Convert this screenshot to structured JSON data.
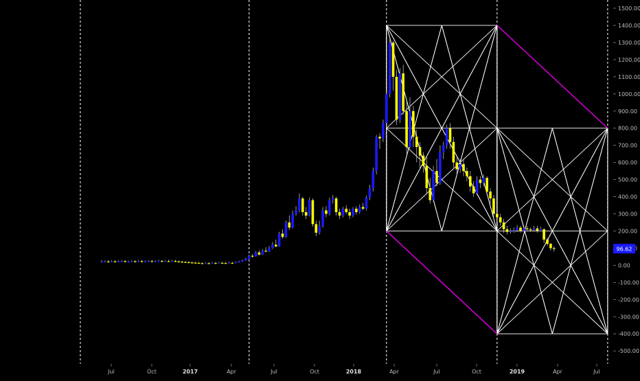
{
  "colors": {
    "background": "#000000",
    "bull_candle": "#1a1aff",
    "bear_candle": "#ffff00",
    "wick": "#bbbbbb",
    "grid_lines": "#ffffff",
    "session_lines": "#e0e0e0",
    "diagonal_lines": "#cc00cc",
    "axis_text": "#bdbdbd",
    "price_badge_bg": "#1a1aff"
  },
  "chart_data": {
    "type": "candlestick",
    "grid": false,
    "y_axis": {
      "position": "right",
      "ticks": [
        "1500.00",
        "1400.00",
        "1300.00",
        "1200.00",
        "1100.00",
        "1000.00",
        "900.00",
        "800.00",
        "700.00",
        "600.00",
        "500.00",
        "400.00",
        "300.00",
        "200.00",
        "100.00",
        "0.00",
        "-100.00",
        "-200.00",
        "-300.00",
        "-400.00",
        "-500.00"
      ],
      "ylim": [
        -540,
        1520
      ]
    },
    "x_axis": {
      "tick_labels": [
        {
          "label": "Jul",
          "bold": false
        },
        {
          "label": "Oct",
          "bold": false
        },
        {
          "label": "2017",
          "bold": true
        },
        {
          "label": "Apr",
          "bold": false
        },
        {
          "label": "Jul",
          "bold": false
        },
        {
          "label": "Oct",
          "bold": false
        },
        {
          "label": "2018",
          "bold": true
        },
        {
          "label": "Apr",
          "bold": false
        },
        {
          "label": "Jul",
          "bold": false
        },
        {
          "label": "Oct",
          "bold": false
        },
        {
          "label": "2019",
          "bold": true
        },
        {
          "label": "Apr",
          "bold": false
        },
        {
          "label": "Jul",
          "bold": false
        }
      ]
    },
    "last_price": "96.62",
    "candles": [
      [
        20,
        20,
        30,
        15
      ],
      [
        20,
        22,
        28,
        16
      ],
      [
        22,
        21,
        30,
        16
      ],
      [
        21,
        23,
        30,
        18
      ],
      [
        23,
        20,
        28,
        15
      ],
      [
        20,
        22,
        29,
        17
      ],
      [
        22,
        24,
        30,
        19
      ],
      [
        24,
        20,
        30,
        16
      ],
      [
        20,
        21,
        27,
        15
      ],
      [
        21,
        23,
        29,
        18
      ],
      [
        23,
        22,
        30,
        17
      ],
      [
        22,
        24,
        31,
        19
      ],
      [
        24,
        21,
        30,
        16
      ],
      [
        21,
        22,
        28,
        17
      ],
      [
        22,
        24,
        30,
        19
      ],
      [
        24,
        22,
        31,
        18
      ],
      [
        22,
        23,
        29,
        17
      ],
      [
        23,
        25,
        31,
        20
      ],
      [
        25,
        22,
        30,
        18
      ],
      [
        22,
        24,
        30,
        19
      ],
      [
        24,
        23,
        32,
        19
      ],
      [
        23,
        25,
        32,
        20
      ],
      [
        25,
        22,
        31,
        18
      ],
      [
        22,
        21,
        28,
        16
      ],
      [
        21,
        19,
        26,
        14
      ],
      [
        19,
        18,
        25,
        13
      ],
      [
        18,
        16,
        24,
        12
      ],
      [
        16,
        15,
        22,
        11
      ],
      [
        15,
        14,
        21,
        10
      ],
      [
        14,
        12,
        19,
        9
      ],
      [
        12,
        11,
        17,
        8
      ],
      [
        11,
        12,
        17,
        8
      ],
      [
        12,
        11,
        18,
        8
      ],
      [
        11,
        13,
        18,
        9
      ],
      [
        13,
        12,
        19,
        9
      ],
      [
        12,
        14,
        19,
        10
      ],
      [
        14,
        13,
        20,
        10
      ],
      [
        13,
        12,
        19,
        9
      ],
      [
        12,
        14,
        20,
        10
      ],
      [
        14,
        13,
        20,
        10
      ],
      [
        13,
        17,
        22,
        12
      ],
      [
        17,
        22,
        26,
        15
      ],
      [
        22,
        28,
        33,
        20
      ],
      [
        28,
        38,
        44,
        26
      ],
      [
        38,
        55,
        62,
        35
      ],
      [
        55,
        52,
        65,
        45
      ],
      [
        52,
        75,
        82,
        50
      ],
      [
        75,
        62,
        88,
        58
      ],
      [
        62,
        85,
        95,
        60
      ],
      [
        85,
        80,
        105,
        75
      ],
      [
        80,
        100,
        112,
        78
      ],
      [
        100,
        120,
        135,
        95
      ],
      [
        120,
        110,
        150,
        105
      ],
      [
        110,
        185,
        195,
        108
      ],
      [
        185,
        165,
        210,
        155
      ],
      [
        165,
        250,
        260,
        160
      ],
      [
        250,
        220,
        290,
        205
      ],
      [
        220,
        300,
        320,
        215
      ],
      [
        300,
        320,
        345,
        290
      ],
      [
        320,
        390,
        420,
        310
      ],
      [
        390,
        310,
        400,
        290
      ],
      [
        310,
        290,
        340,
        270
      ],
      [
        290,
        380,
        395,
        285
      ],
      [
        380,
        240,
        390,
        225
      ],
      [
        240,
        190,
        260,
        170
      ],
      [
        190,
        230,
        260,
        180
      ],
      [
        230,
        320,
        340,
        220
      ],
      [
        320,
        300,
        345,
        280
      ],
      [
        300,
        380,
        395,
        290
      ],
      [
        380,
        390,
        410,
        360
      ],
      [
        390,
        310,
        400,
        290
      ],
      [
        310,
        290,
        330,
        270
      ],
      [
        290,
        330,
        340,
        280
      ],
      [
        330,
        310,
        350,
        300
      ],
      [
        310,
        290,
        330,
        270
      ],
      [
        290,
        330,
        340,
        280
      ],
      [
        330,
        310,
        345,
        295
      ],
      [
        310,
        340,
        355,
        300
      ],
      [
        340,
        330,
        365,
        320
      ],
      [
        330,
        395,
        405,
        320
      ],
      [
        395,
        450,
        470,
        380
      ],
      [
        450,
        550,
        570,
        430
      ],
      [
        550,
        750,
        760,
        530
      ],
      [
        750,
        740,
        770,
        680
      ],
      [
        740,
        830,
        850,
        720
      ],
      [
        830,
        1000,
        1020,
        800
      ],
      [
        1000,
        1300,
        1320,
        980
      ],
      [
        1300,
        1100,
        1310,
        1020
      ],
      [
        1100,
        850,
        1140,
        820
      ],
      [
        850,
        1120,
        1150,
        830
      ],
      [
        1120,
        900,
        1170,
        880
      ],
      [
        900,
        690,
        950,
        650
      ],
      [
        690,
        900,
        980,
        680
      ],
      [
        900,
        750,
        930,
        690
      ],
      [
        750,
        690,
        790,
        600
      ],
      [
        690,
        640,
        720,
        560
      ],
      [
        640,
        580,
        660,
        540
      ],
      [
        580,
        450,
        630,
        420
      ],
      [
        450,
        380,
        510,
        360
      ],
      [
        380,
        550,
        580,
        370
      ],
      [
        550,
        480,
        620,
        460
      ],
      [
        480,
        660,
        700,
        470
      ],
      [
        660,
        700,
        720,
        620
      ],
      [
        700,
        800,
        820,
        680
      ],
      [
        800,
        720,
        830,
        680
      ],
      [
        720,
        600,
        750,
        570
      ],
      [
        600,
        560,
        630,
        520
      ],
      [
        560,
        590,
        620,
        540
      ],
      [
        590,
        550,
        620,
        520
      ],
      [
        550,
        520,
        570,
        490
      ],
      [
        520,
        460,
        550,
        430
      ],
      [
        460,
        420,
        490,
        400
      ],
      [
        420,
        500,
        520,
        410
      ],
      [
        500,
        480,
        520,
        450
      ],
      [
        480,
        510,
        530,
        460
      ],
      [
        510,
        430,
        520,
        410
      ],
      [
        430,
        390,
        450,
        360
      ],
      [
        390,
        300,
        410,
        280
      ],
      [
        300,
        280,
        310,
        250
      ],
      [
        280,
        250,
        300,
        230
      ],
      [
        250,
        210,
        270,
        190
      ],
      [
        210,
        195,
        230,
        180
      ],
      [
        195,
        200,
        215,
        185
      ],
      [
        200,
        205,
        220,
        190
      ],
      [
        205,
        220,
        235,
        195
      ],
      [
        220,
        200,
        230,
        190
      ],
      [
        200,
        215,
        230,
        195
      ],
      [
        215,
        210,
        230,
        200
      ],
      [
        210,
        205,
        220,
        195
      ],
      [
        205,
        215,
        230,
        200
      ],
      [
        215,
        200,
        230,
        190
      ],
      [
        200,
        210,
        225,
        195
      ],
      [
        210,
        150,
        215,
        130
      ],
      [
        150,
        125,
        160,
        115
      ],
      [
        125,
        100,
        130,
        85
      ],
      [
        100,
        97,
        110,
        80
      ]
    ],
    "annotations": [
      {
        "kind": "gann_box",
        "x_range": [
          85,
          118
        ],
        "y_range": [
          200,
          1400
        ]
      },
      {
        "kind": "gann_box",
        "x_range": [
          118,
          151
        ],
        "y_range": [
          -400,
          800
        ]
      },
      {
        "kind": "diagonal",
        "points": [
          [
            85,
            200
          ],
          [
            118,
            -400
          ]
        ]
      },
      {
        "kind": "diagonal",
        "points": [
          [
            118,
            1400
          ],
          [
            151,
            800
          ]
        ]
      }
    ],
    "session_lines": [
      -50,
      44,
      85,
      118,
      151
    ]
  }
}
